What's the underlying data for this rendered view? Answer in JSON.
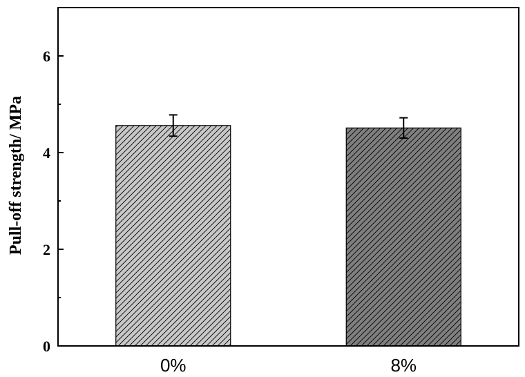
{
  "chart_data": {
    "type": "bar",
    "categories": [
      "0%",
      "8%"
    ],
    "values": [
      4.56,
      4.51
    ],
    "errors": [
      0.22,
      0.21
    ],
    "xlabel": "",
    "ylabel": "Pull-off strength/ MPa",
    "ylim": [
      0,
      7
    ],
    "yticks": [
      0,
      2,
      4,
      6
    ],
    "yticks_minor": [
      1,
      3,
      5
    ],
    "grid": false,
    "legend": "none",
    "bar_fills": [
      "#c8c8c8",
      "#7f7f7f"
    ],
    "hatch": "diagonal",
    "edge_color": "#000000"
  }
}
